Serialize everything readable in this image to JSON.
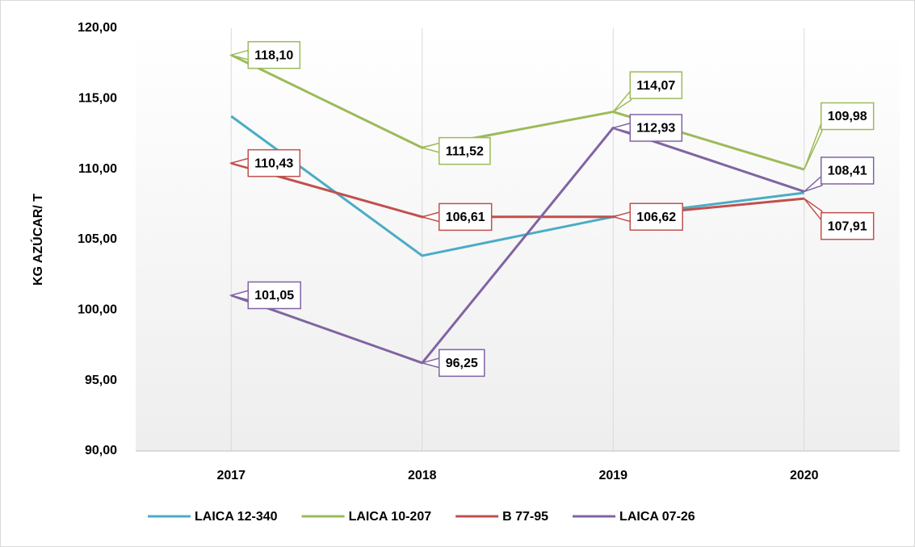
{
  "chart_data": {
    "type": "line",
    "y_label": "KG AZÚCAR/ T",
    "categories": [
      "2017",
      "2018",
      "2019",
      "2020"
    ],
    "series": [
      {
        "name": "LAICA 12-340",
        "color": "#4bacc6",
        "values": [
          113.76,
          103.86,
          106.62,
          108.32
        ]
      },
      {
        "name": "LAICA 10-207",
        "color": "#9bbb59",
        "values": [
          118.1,
          111.52,
          114.07,
          109.98
        ],
        "value_labels": [
          "118,10",
          "111,52",
          "114,07",
          "109,98"
        ]
      },
      {
        "name": "B 77-95",
        "color": "#c0504d",
        "values": [
          110.43,
          106.61,
          106.62,
          107.91
        ],
        "value_labels": [
          "110,43",
          "106,61",
          "106,62",
          "107,91"
        ]
      },
      {
        "name": "LAICA 07-26",
        "color": "#8064a2",
        "values": [
          101.05,
          96.25,
          112.93,
          108.41
        ],
        "value_labels": [
          "101,05",
          "96,25",
          "112,93",
          "108,41"
        ]
      }
    ],
    "ylim": [
      90,
      120
    ],
    "yticks": [
      {
        "value": 90,
        "label": "90,00"
      },
      {
        "value": 95,
        "label": "95,00"
      },
      {
        "value": 100,
        "label": "100,00"
      },
      {
        "value": 105,
        "label": "105,00"
      },
      {
        "value": 110,
        "label": "110,00"
      },
      {
        "value": 115,
        "label": "115,00"
      },
      {
        "value": 120,
        "label": "120,00"
      }
    ],
    "legend": "bottom"
  }
}
